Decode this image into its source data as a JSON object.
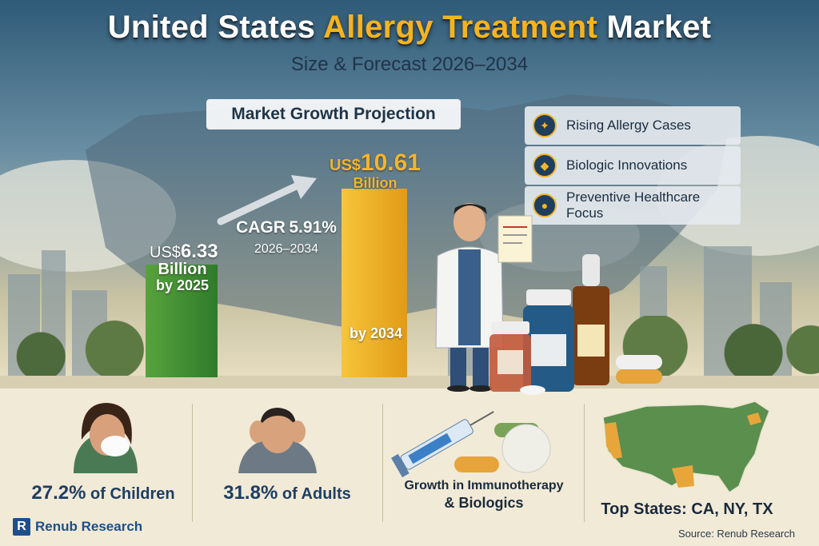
{
  "header": {
    "title_part1": "United States ",
    "title_highlight": "Allergy Treatment",
    "title_part2": " Market",
    "subtitle": "Size & Forecast 2026–2034"
  },
  "growth_label": "Market Growth Projection",
  "chart_data": {
    "type": "bar",
    "categories": [
      "2025",
      "2034"
    ],
    "values": [
      6.33,
      10.61
    ],
    "unit": "Billion",
    "currency": "US$",
    "bar_colors": [
      "#3f8c33",
      "#eeae26"
    ],
    "labels": [
      {
        "currency": "US$",
        "value": "6.33",
        "unit": "Billion",
        "year": "by 2025"
      },
      {
        "currency": "US$",
        "value": "10.61",
        "unit": "Billion",
        "year": "by 2034"
      }
    ],
    "cagr": {
      "label": "CAGR",
      "value": "5.91%",
      "period": "2026–2034"
    }
  },
  "drivers": [
    {
      "label": "Rising Allergy Cases",
      "icon": "allergy-icon"
    },
    {
      "label": "Biologic Innovations",
      "icon": "biologic-icon"
    },
    {
      "label": "Preventive Healthcare Focus",
      "icon": "shield-icon"
    }
  ],
  "stats": [
    {
      "value": "27.2%",
      "text": " of Children",
      "icon": "sneezing-child-icon"
    },
    {
      "value": "31.8%",
      "text": " of Adults",
      "icon": "adult-headache-icon"
    }
  ],
  "immunotherapy": {
    "line1": "Growth in Immunotherapy",
    "line2": "& Biologics"
  },
  "top_states": "Top States: CA, NY, TX",
  "brand": {
    "mark": "R",
    "name": "Renub Research"
  },
  "source": "Source: Renub Research",
  "colors": {
    "accent": "#f4b41e",
    "navy": "#1e3e64",
    "green_bar": "#3f8c33",
    "gold_bar": "#eeae26"
  }
}
